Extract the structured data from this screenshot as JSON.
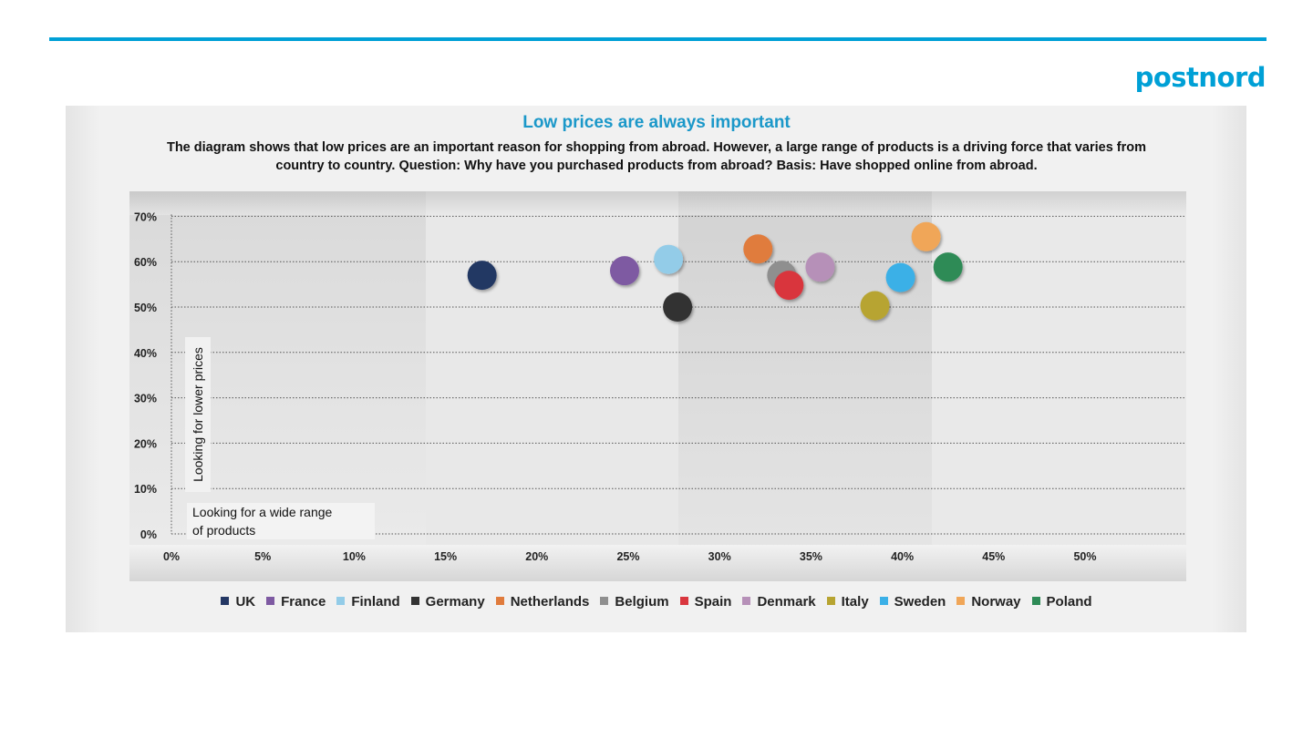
{
  "logo": "postnord",
  "chart_data": {
    "type": "scatter",
    "title": "Low prices are always important",
    "subtitle_line1": "The diagram shows that low prices are an important reason for shopping from abroad. However, a large range of products is a driving force that varies from",
    "subtitle_line2": "country to country. Question: Why have you purchased products from abroad? Basis: Have shopped online from abroad.",
    "xlabel": "Looking for a wide range of products",
    "xlabel_line1": "Looking for a wide range",
    "xlabel_line2": "of products",
    "ylabel": "Looking for lower prices",
    "xlim": [
      0,
      55
    ],
    "ylim": [
      0,
      70
    ],
    "x_ticks": [
      "0%",
      "5%",
      "10%",
      "15%",
      "20%",
      "25%",
      "30%",
      "35%",
      "40%",
      "45%",
      "50%"
    ],
    "y_ticks": [
      "0%",
      "10%",
      "20%",
      "30%",
      "40%",
      "50%",
      "60%",
      "70%"
    ],
    "grid": "horizontal dotted",
    "legend_position": "bottom",
    "series": [
      {
        "name": "UK",
        "color": "#243764",
        "x": 17,
        "y": 57
      },
      {
        "name": "France",
        "color": "#7e5aa2",
        "x": 24.8,
        "y": 58
      },
      {
        "name": "Finland",
        "color": "#93cce8",
        "x": 27.2,
        "y": 60.5
      },
      {
        "name": "Germany",
        "color": "#333333",
        "x": 27.7,
        "y": 50
      },
      {
        "name": "Netherlands",
        "color": "#e07b3c",
        "x": 32.1,
        "y": 62.8
      },
      {
        "name": "Belgium",
        "color": "#8f8f8f",
        "x": 33.4,
        "y": 57
      },
      {
        "name": "Spain",
        "color": "#d9363e",
        "x": 33.8,
        "y": 54.8
      },
      {
        "name": "Denmark",
        "color": "#b690b8",
        "x": 35.5,
        "y": 58.8
      },
      {
        "name": "Italy",
        "color": "#b7a431",
        "x": 38.5,
        "y": 50.3
      },
      {
        "name": "Sweden",
        "color": "#3bb0e7",
        "x": 39.9,
        "y": 56.5
      },
      {
        "name": "Norway",
        "color": "#f0a658",
        "x": 41.3,
        "y": 65.5
      },
      {
        "name": "Poland",
        "color": "#2e8b57",
        "x": 42.5,
        "y": 58.8
      }
    ]
  }
}
